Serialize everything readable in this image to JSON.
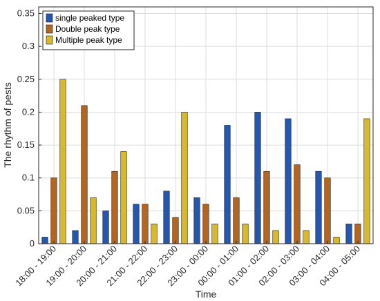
{
  "chart_data": {
    "type": "bar",
    "xlabel": "Time",
    "ylabel": "The rhythm of pests",
    "ylim": [
      0,
      0.36
    ],
    "yticks": [
      "0",
      "0.05",
      "0.1",
      "0.15",
      "0.2",
      "0.25",
      "0.3",
      "0.35"
    ],
    "ytick_values": [
      0,
      0.05,
      0.1,
      0.15,
      0.2,
      0.25,
      0.3,
      0.35
    ],
    "grid": true,
    "legend_position": "top-left",
    "categories": [
      "18:00 - 19:00",
      "19:00 - 20:00",
      "20:00 - 21:00",
      "21:00 - 22:00",
      "22:00 - 23:00",
      "23:00 - 00:00",
      "00:00 - 01:00",
      "01:00 - 02:00",
      "02:00 - 03:00",
      "03:00 - 04:00",
      "04:00 - 05:00"
    ],
    "series": [
      {
        "name": "single peaked type",
        "color": "#2456b3",
        "values": [
          0.01,
          0.02,
          0.05,
          0.06,
          0.08,
          0.07,
          0.18,
          0.2,
          0.19,
          0.11,
          0.03
        ]
      },
      {
        "name": "Double peak type",
        "color": "#b5651d",
        "values": [
          0.1,
          0.21,
          0.11,
          0.06,
          0.04,
          0.06,
          0.07,
          0.11,
          0.12,
          0.1,
          0.03
        ]
      },
      {
        "name": "Multiple peak type",
        "color": "#d9b92a",
        "values": [
          0.25,
          0.07,
          0.14,
          0.03,
          0.2,
          0.03,
          0.03,
          0.02,
          0.02,
          0.01,
          0.19
        ]
      }
    ]
  }
}
